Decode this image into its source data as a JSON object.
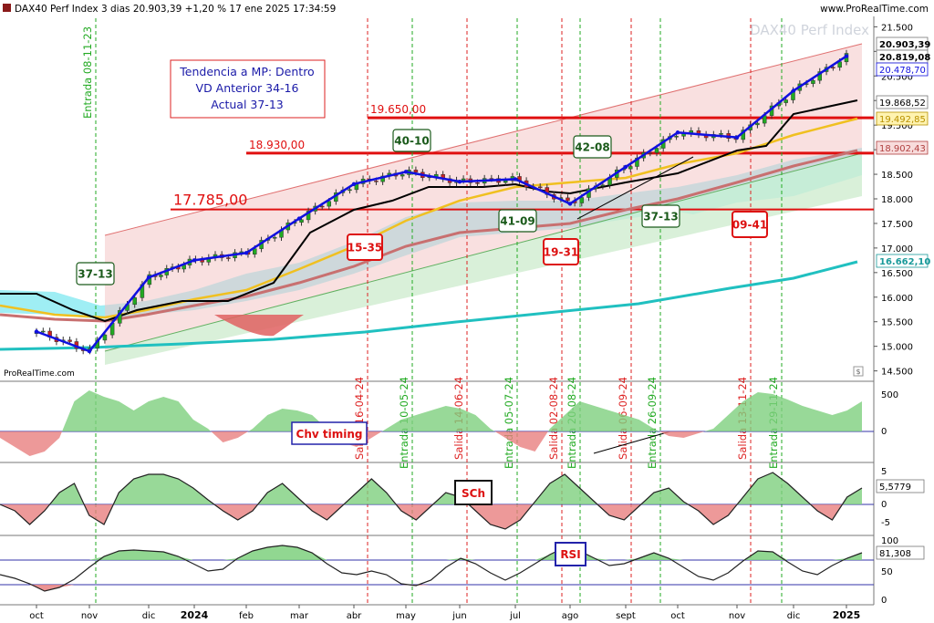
{
  "header": {
    "title": "DAX40 Perf Index 3 dias 20.903,39 +1,20 % 17 ene 2025 17:34:59",
    "site": "www.ProRealTime.com",
    "watermark": "DAX40 Perf Index",
    "logo_text": "ProRealTime.com"
  },
  "infobox": {
    "line1": "Tendencia a MP: Dentro",
    "line2": "VD Anterior 34-16",
    "line3": "Actual 37-13"
  },
  "colors": {
    "price_line": "#1010e0",
    "entry_green": "#22aa22",
    "exit_red": "#dd2222",
    "channel_fill": "#f4c6c6",
    "cloud": "#7fe8f0",
    "ma_yellow": "#f0c020",
    "ma_brown": "#c87070",
    "ma_teal": "#20c0c0"
  },
  "main_axis": {
    "ticks": [
      "21.500",
      "21.000",
      "20.500",
      "20.000",
      "19.500",
      "19.000",
      "18.500",
      "18.000",
      "17.500",
      "17.000",
      "16.500",
      "16.000",
      "15.500",
      "15.000",
      "14.500"
    ],
    "badges": [
      {
        "text": "20.903,39",
        "color": "#000000",
        "bg": "#ffffff",
        "bold": true
      },
      {
        "text": "20.819,08",
        "color": "#000000",
        "bg": "#ffffff",
        "bold": true
      },
      {
        "text": "20.478,70",
        "color": "#1010e0",
        "bg": "#ffffff",
        "bold": false
      },
      {
        "text": "19.868,52",
        "color": "#000000",
        "bg": "#ffffff",
        "bold": false
      },
      {
        "text": "19.492,85",
        "color": "#b89000",
        "bg": "#fff3b0",
        "bold": false
      },
      {
        "text": "18.902,43",
        "color": "#b04040",
        "bg": "#f8dcdc",
        "bold": false
      },
      {
        "text": "16.662,10",
        "color": "#1a9a9a",
        "bg": "#ffffff",
        "bold": true
      }
    ]
  },
  "levels": [
    {
      "value": 19650,
      "label": "19.650,00"
    },
    {
      "value": 18930,
      "label": "18.930,00"
    },
    {
      "value": 17785,
      "label": "17.785,00"
    }
  ],
  "signals": {
    "vertical": [
      {
        "label": "Entrada 08-11-23",
        "type": "entry"
      },
      {
        "label": "Salida 16-04-24",
        "type": "exit"
      },
      {
        "label": "Entrada 10-05-24",
        "type": "entry"
      },
      {
        "label": "Salida 14-06-24",
        "type": "exit"
      },
      {
        "label": "Entrada 05-07-24",
        "type": "entry"
      },
      {
        "label": "Salida 02-08-24",
        "type": "exit"
      },
      {
        "label": "Entrada 20-08-24",
        "type": "entry"
      },
      {
        "label": "Salida 06-09-24",
        "type": "exit"
      },
      {
        "label": "Entrada 26-09-24",
        "type": "entry"
      },
      {
        "label": "Salida 13-11-24",
        "type": "exit"
      },
      {
        "label": "Entrada 29-11-24",
        "type": "entry"
      }
    ],
    "boxes": [
      {
        "text": "37-13",
        "type": "entry"
      },
      {
        "text": "40-10",
        "type": "entry"
      },
      {
        "text": "15-35",
        "type": "exit"
      },
      {
        "text": "41-09",
        "type": "entry"
      },
      {
        "text": "19-31",
        "type": "exit"
      },
      {
        "text": "42-08",
        "type": "entry"
      },
      {
        "text": "37-13",
        "type": "entry"
      },
      {
        "text": "09-41",
        "type": "exit"
      }
    ]
  },
  "panels": {
    "chv": {
      "label": "Chv timing",
      "ticks": [
        "500",
        "0"
      ]
    },
    "sch": {
      "label": "SCh",
      "ticks": [
        "5",
        "0",
        "-5"
      ],
      "badge": "5,5779"
    },
    "rsi": {
      "label": "RSI",
      "ticks": [
        "100",
        "50",
        "0"
      ],
      "badge": "81,308"
    }
  },
  "x_axis": {
    "labels": [
      "oct",
      "nov",
      "dic",
      "2024",
      "feb",
      "mar",
      "abr",
      "may",
      "jun",
      "jul",
      "ago",
      "sept",
      "oct",
      "nov",
      "dic",
      "2025"
    ]
  },
  "chart_data": {
    "type": "line",
    "title": "DAX40 Perf Index 3 dias",
    "x": [
      "oct",
      "nov",
      "dic",
      "2024",
      "feb",
      "mar",
      "abr",
      "may",
      "jun",
      "jul",
      "ago",
      "sept",
      "oct",
      "nov",
      "dic",
      "2025"
    ],
    "series": [
      {
        "values": [
          15300,
          14900,
          16400,
          16750,
          16900,
          17600,
          18300,
          18550,
          18350,
          18400,
          17900,
          18650,
          19350,
          19250,
          20200,
          20903
        ]
      }
    ],
    "ylim": [
      14400,
      21600
    ]
  }
}
